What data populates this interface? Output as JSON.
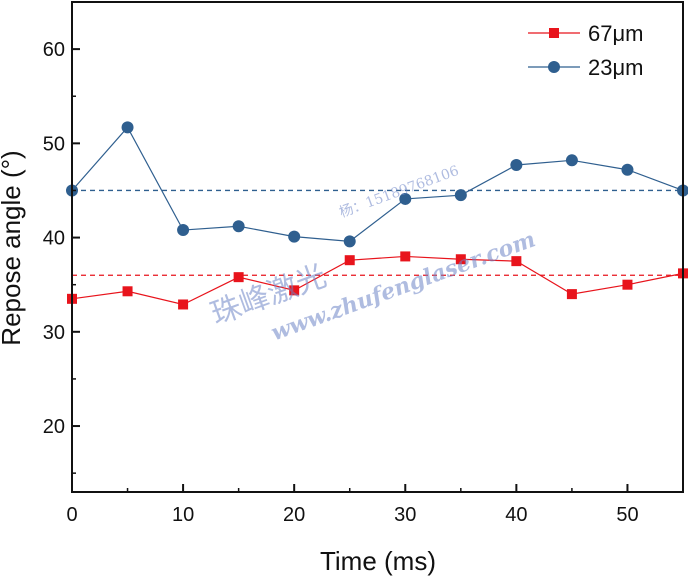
{
  "chart_data": {
    "type": "line",
    "xlabel": "Time (ms)",
    "ylabel": "Repose angle (°)",
    "xlim": [
      0,
      55
    ],
    "ylim": [
      13,
      65
    ],
    "xticks": [
      0,
      10,
      20,
      30,
      40,
      50
    ],
    "yticks": [
      20,
      30,
      40,
      50,
      60
    ],
    "grid": false,
    "legend_position": "top-right",
    "series": [
      {
        "name": "67μm",
        "color": "#e8141c",
        "marker": "square",
        "x": [
          0,
          5,
          10,
          15,
          20,
          25,
          30,
          35,
          40,
          45,
          50,
          55
        ],
        "y": [
          33.5,
          34.3,
          32.9,
          35.8,
          34.4,
          37.6,
          38.0,
          37.7,
          37.5,
          34.0,
          35.0,
          36.2
        ],
        "reference_line": 36.0
      },
      {
        "name": "23μm",
        "color": "#2f5f8f",
        "marker": "circle",
        "x": [
          0,
          5,
          10,
          15,
          20,
          25,
          30,
          35,
          40,
          45,
          50,
          55
        ],
        "y": [
          45.0,
          51.7,
          40.8,
          41.2,
          40.1,
          39.6,
          44.1,
          44.5,
          47.7,
          48.2,
          47.2,
          45.0
        ],
        "reference_line": 45.0
      }
    ]
  },
  "watermark": {
    "brand": "珠峰激光",
    "contact": "杨：15189768106",
    "url": "www.zhufenglaser.com"
  }
}
